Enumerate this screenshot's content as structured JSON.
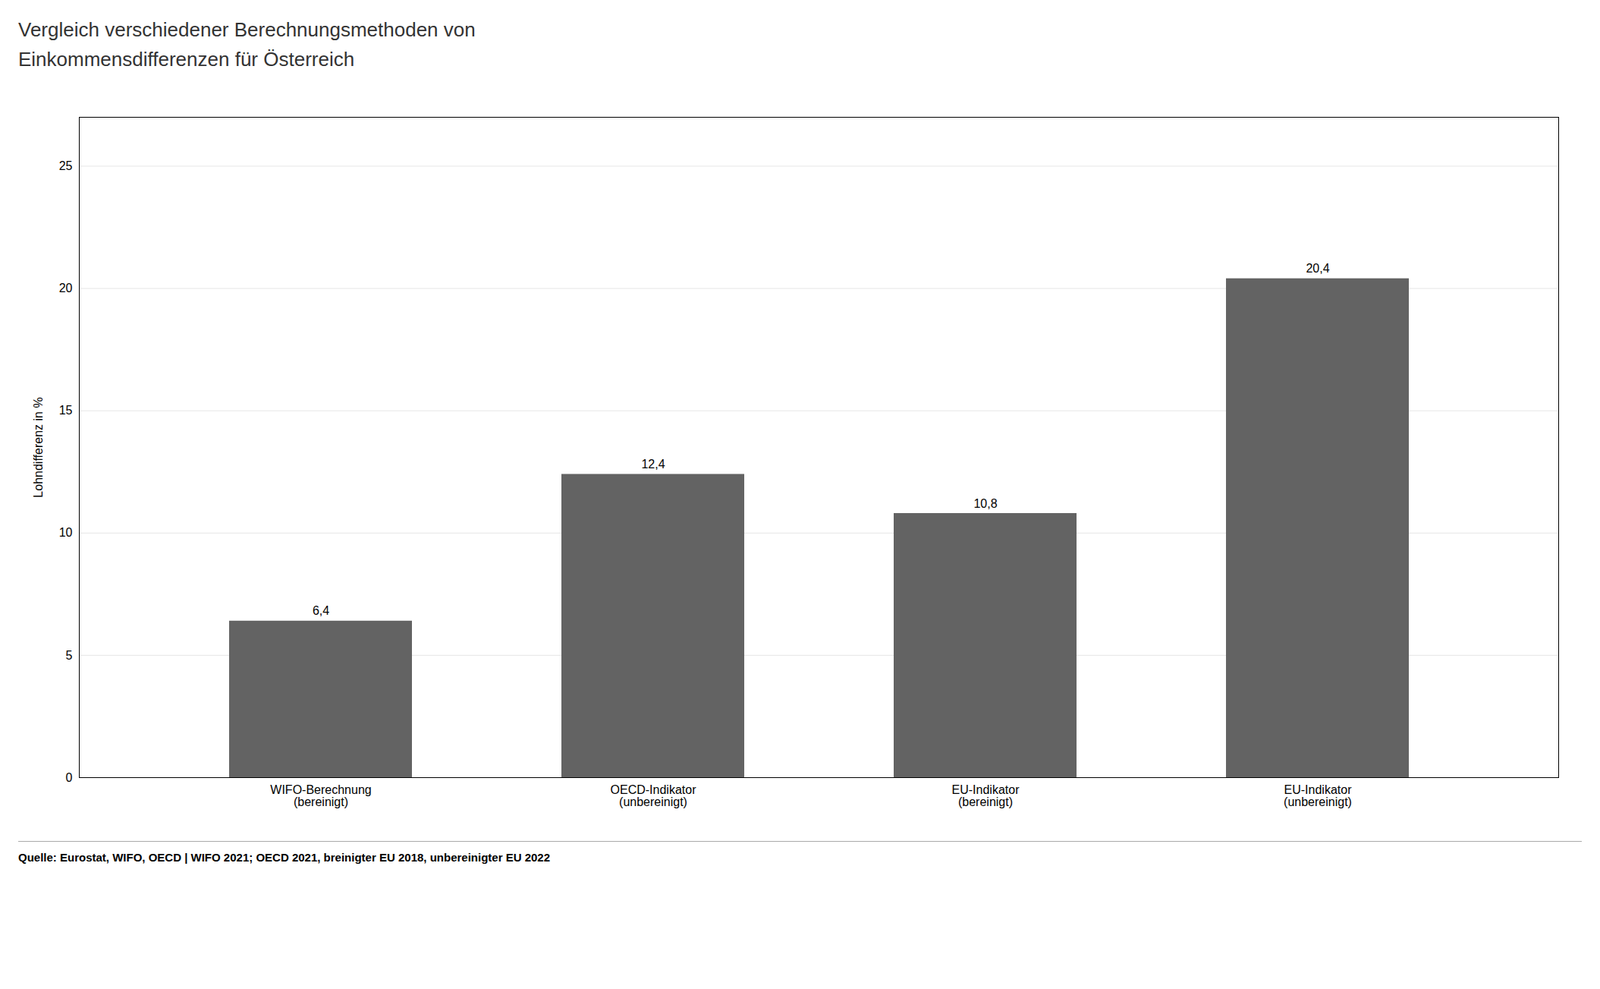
{
  "chart_data": {
    "type": "bar",
    "title": "Vergleich verschiedener Berechnungsmethoden von\nEinkommensdifferenzen für Österreich",
    "categories": [
      "WIFO-Berechnung\n(bereinigt)",
      "OECD-Indikator\n(unbereinigt)",
      "EU-Indikator\n(bereinigt)",
      "EU-Indikator\n(unbereinigt)"
    ],
    "values": [
      6.4,
      12.4,
      10.8,
      20.4
    ],
    "value_labels": [
      "6,4",
      "12,4",
      "10,8",
      "20,4"
    ],
    "data_labels": true,
    "color": "#636363",
    "ylabel": "Lohndifferenz in %",
    "ylim": [
      0,
      27
    ],
    "yticks": [
      0,
      5,
      10,
      15,
      20,
      25
    ],
    "grid": true,
    "source": "Quelle: Eurostat, WIFO, OECD  |  WIFO 2021; OECD 2021, breinigter EU 2018, unbereinigter EU 2022"
  }
}
